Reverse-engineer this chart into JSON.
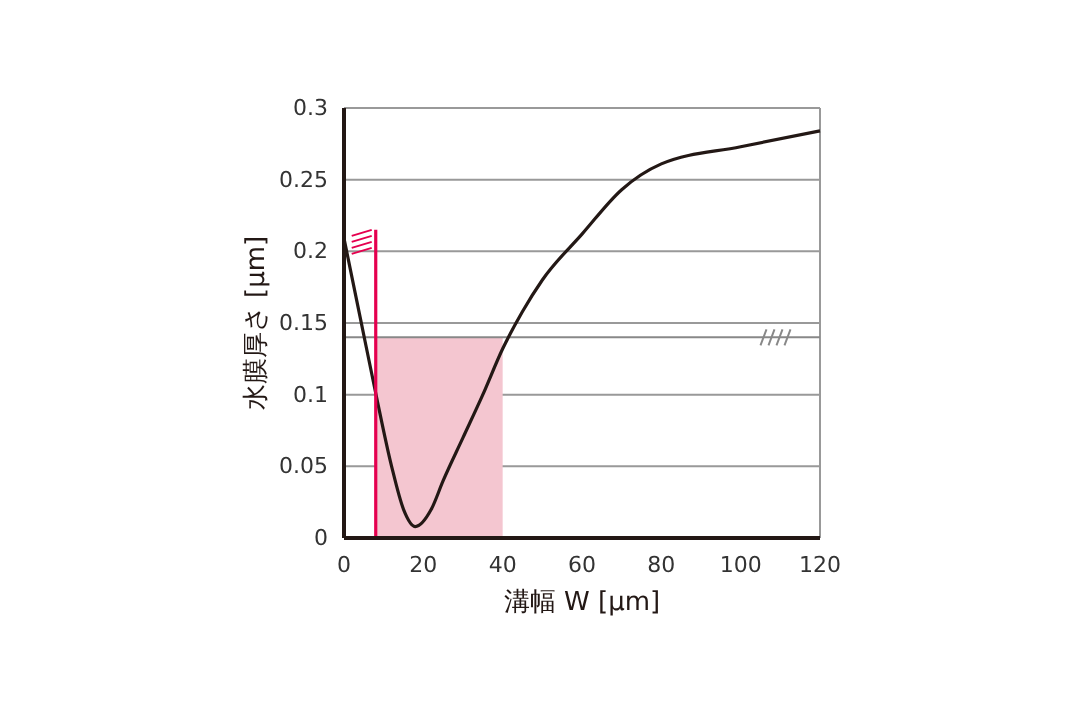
{
  "chart_data": {
    "type": "line",
    "xlabel": "溝幅 W [μm]",
    "ylabel": "水膜厚さ [μm]",
    "xlim": [
      0,
      120
    ],
    "xticks": [
      0,
      20,
      40,
      60,
      80,
      100,
      120
    ],
    "ylim": [
      0,
      0.3
    ],
    "yticks": [
      0,
      0.05,
      0.1,
      0.15,
      0.2,
      0.25,
      0.3
    ],
    "grid": "y",
    "marker": "none",
    "line_style": "solid",
    "ref_lines": [
      {
        "axis": "y",
        "value": 0.14,
        "color": "#888888"
      }
    ],
    "series": [
      {
        "type": "area",
        "color": "#f4c6d0",
        "x": [
          8,
          40
        ],
        "values": [
          0.14,
          0.14
        ]
      },
      {
        "color": "#231815",
        "x": [
          0,
          4,
          8,
          12,
          15,
          18,
          22,
          25,
          30,
          35,
          40,
          45,
          50,
          60,
          70,
          80,
          100,
          120
        ],
        "values": [
          0.209,
          0.155,
          0.101,
          0.05,
          0.02,
          0.008,
          0.02,
          0.04,
          0.07,
          0.1,
          0.132,
          0.158,
          0.18,
          0.212,
          0.243,
          0.261,
          0.273,
          0.284
        ]
      },
      {
        "color": "#e5004f",
        "x": [
          8,
          8
        ],
        "values": [
          0,
          0.215
        ]
      }
    ]
  }
}
